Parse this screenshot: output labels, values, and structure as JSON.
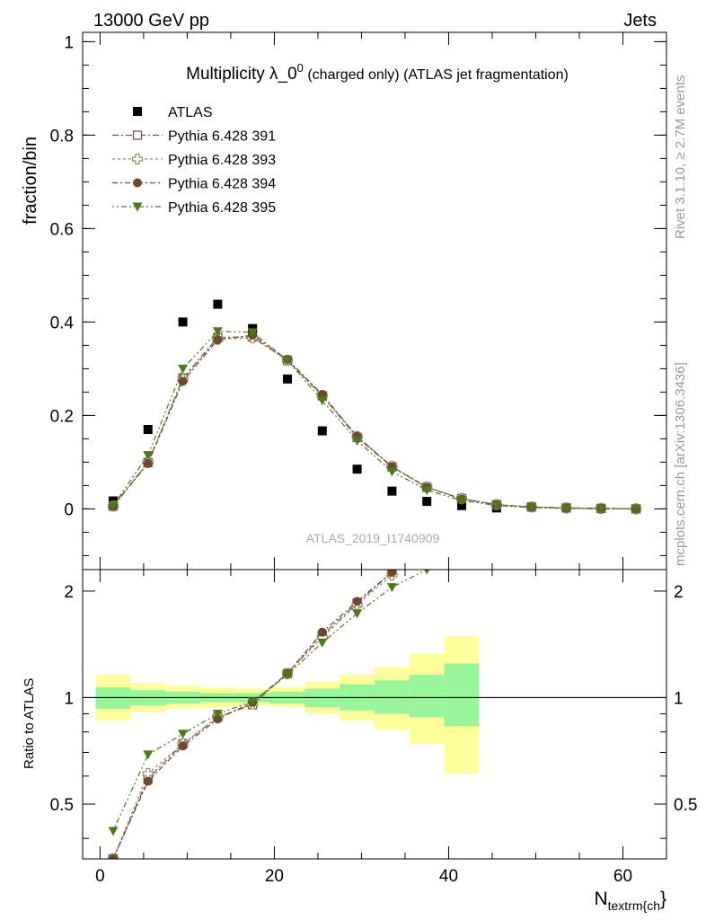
{
  "header": {
    "left": "13000 GeV pp",
    "right": "Jets"
  },
  "side_labels": {
    "rivet": "Rivet 3.1.10, ≥ 2.7M events",
    "mcplots": "mcplots.cern.ch [arXiv:1306.3436]"
  },
  "colors": {
    "atlas": "#000000",
    "p391": "#7a4a5a",
    "p393": "#9a8a5a",
    "p394": "#6b4a2e",
    "p395": "#4a7a1a",
    "band_inner": "#99f599",
    "band_outer": "#fdfd99"
  },
  "chart_data": [
    {
      "type": "scatter",
      "title_main": "Multiplicity λ_0",
      "title_sup": "0",
      "title_rest": " (charged only) (ATLAS jet fragmentation)",
      "ylabel": "fraction/bin",
      "watermark": "ATLAS_2019_I1740909",
      "xlim": [
        -2,
        65
      ],
      "ylim": [
        -0.13,
        1.02
      ],
      "x_ticks": [
        0,
        20,
        40,
        60
      ],
      "y_ticks": [
        0,
        0.2,
        0.4,
        0.6,
        0.8,
        1
      ],
      "y_tick_labels": [
        "0",
        "0.2",
        "0.4",
        "0.6",
        "0.8",
        "1"
      ],
      "legend_position": "top-left",
      "series": [
        {
          "name": "ATLAS",
          "marker": "square-filled",
          "x": [
            1.5,
            5.5,
            9.5,
            13.5,
            17.5,
            21.5,
            25.5,
            29.5,
            33.5,
            37.5,
            41.5,
            45.5
          ],
          "y": [
            0.017,
            0.17,
            0.4,
            0.438,
            0.386,
            0.278,
            0.167,
            0.085,
            0.038,
            0.016,
            0.007,
            0.002
          ]
        },
        {
          "name": "Pythia 6.428 391",
          "marker": "square-open",
          "x": [
            1.5,
            5.5,
            9.5,
            13.5,
            17.5,
            21.5,
            25.5,
            29.5,
            33.5,
            37.5,
            41.5,
            45.5,
            49.5,
            53.5,
            57.5,
            61.5
          ],
          "y": [
            0.006,
            0.099,
            0.28,
            0.367,
            0.368,
            0.318,
            0.242,
            0.153,
            0.09,
            0.046,
            0.022,
            0.009,
            0.004,
            0.002,
            0.001,
            0.0
          ]
        },
        {
          "name": "Pythia 6.428 393",
          "marker": "cross-open",
          "x": [
            1.5,
            5.5,
            9.5,
            13.5,
            17.5,
            21.5,
            25.5,
            29.5,
            33.5,
            37.5,
            41.5,
            45.5,
            49.5,
            53.5,
            57.5,
            61.5
          ],
          "y": [
            0.006,
            0.1,
            0.277,
            0.363,
            0.366,
            0.318,
            0.243,
            0.155,
            0.091,
            0.047,
            0.022,
            0.009,
            0.004,
            0.002,
            0.001,
            0.0
          ]
        },
        {
          "name": "Pythia 6.428 394",
          "marker": "circle-filled",
          "x": [
            1.5,
            5.5,
            9.5,
            13.5,
            17.5,
            21.5,
            25.5,
            29.5,
            33.5,
            37.5,
            41.5,
            45.5,
            49.5,
            53.5,
            57.5,
            61.5
          ],
          "y": [
            0.006,
            0.097,
            0.273,
            0.362,
            0.372,
            0.32,
            0.245,
            0.155,
            0.09,
            0.046,
            0.021,
            0.009,
            0.004,
            0.002,
            0.001,
            0.0
          ]
        },
        {
          "name": "Pythia 6.428 395",
          "marker": "triangle-down-filled",
          "x": [
            1.5,
            5.5,
            9.5,
            13.5,
            17.5,
            21.5,
            25.5,
            29.5,
            33.5,
            37.5,
            41.5,
            45.5,
            49.5,
            53.5,
            57.5,
            61.5
          ],
          "y": [
            0.007,
            0.115,
            0.3,
            0.38,
            0.378,
            0.318,
            0.232,
            0.146,
            0.08,
            0.04,
            0.018,
            0.007,
            0.003,
            0.001,
            0.0,
            0.0
          ]
        }
      ]
    },
    {
      "type": "scatter",
      "ylabel": "Ratio to ATLAS",
      "xlabel_main": "N",
      "xlabel_sub": "textrm{ch",
      "xlabel_tail": "}",
      "xlim": [
        -2,
        65
      ],
      "ylim": [
        0.35,
        2.3
      ],
      "x_ticks": [
        0,
        20,
        40,
        60
      ],
      "y_ticks": [
        0.5,
        1,
        2
      ],
      "y_tick_labels": [
        "0.5",
        "1",
        "2"
      ],
      "reference_line": 1,
      "bands": {
        "x_low": [
          -0.5,
          3.5,
          7.5,
          11.5,
          15.5,
          19.5,
          23.5,
          27.5,
          31.5,
          35.5,
          39.5
        ],
        "x_high": [
          3.5,
          7.5,
          11.5,
          15.5,
          19.5,
          23.5,
          27.5,
          31.5,
          35.5,
          39.5,
          43.5
        ],
        "inner_low": [
          0.93,
          0.95,
          0.96,
          0.97,
          0.97,
          0.96,
          0.94,
          0.92,
          0.9,
          0.88,
          0.83
        ],
        "inner_high": [
          1.07,
          1.05,
          1.04,
          1.03,
          1.03,
          1.04,
          1.06,
          1.09,
          1.12,
          1.16,
          1.25
        ],
        "outer_low": [
          0.86,
          0.91,
          0.93,
          0.94,
          0.95,
          0.94,
          0.9,
          0.86,
          0.81,
          0.74,
          0.61
        ],
        "outer_high": [
          1.16,
          1.1,
          1.08,
          1.07,
          1.06,
          1.07,
          1.11,
          1.16,
          1.22,
          1.33,
          1.49
        ]
      },
      "series": [
        {
          "name": "Pythia 6.428 391",
          "marker": "square-open",
          "x": [
            1.5,
            5.5,
            9.5,
            13.5,
            17.5,
            21.5,
            25.5,
            29.5,
            33.5
          ],
          "y": [
            0.35,
            0.59,
            0.74,
            0.88,
            0.955,
            1.17,
            1.5,
            1.85,
            2.26
          ]
        },
        {
          "name": "Pythia 6.428 393",
          "marker": "cross-open",
          "x": [
            1.5,
            5.5,
            9.5,
            13.5,
            17.5,
            21.5,
            25.5,
            29.5,
            33.5
          ],
          "y": [
            0.35,
            0.61,
            0.74,
            0.88,
            0.96,
            1.17,
            1.48,
            1.83,
            2.22
          ]
        },
        {
          "name": "Pythia 6.428 394",
          "marker": "circle-filled",
          "x": [
            1.5,
            5.5,
            9.5,
            13.5,
            17.5,
            21.5,
            25.5,
            29.5,
            33.5
          ],
          "y": [
            0.35,
            0.58,
            0.73,
            0.87,
            0.97,
            1.17,
            1.53,
            1.87,
            2.26
          ]
        },
        {
          "name": "Pythia 6.428 395",
          "marker": "triangle-down-filled",
          "x": [
            1.5,
            5.5,
            9.5,
            13.5,
            17.5,
            21.5,
            25.5,
            29.5,
            33.5,
            37.5
          ],
          "y": [
            0.42,
            0.69,
            0.79,
            0.9,
            0.975,
            1.16,
            1.43,
            1.73,
            2.05,
            2.3
          ]
        }
      ]
    }
  ]
}
